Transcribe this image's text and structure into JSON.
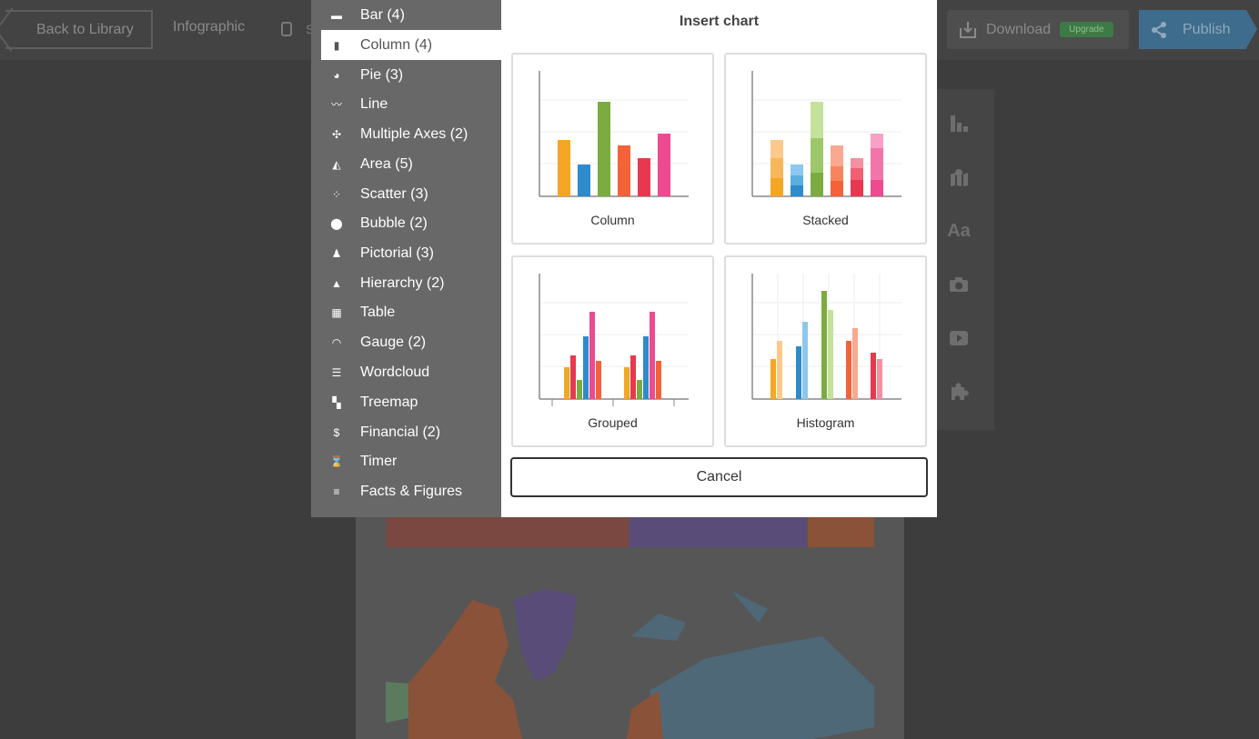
{
  "topbar": {
    "back_label": "Back to Library",
    "doc_title": "Infographic",
    "undo_label": "S",
    "download_label": "Download",
    "upgrade_label": "Upgrade",
    "publish_label": "Publish"
  },
  "menu": {
    "items": [
      {
        "label": "Bar (4)",
        "icon": "bar-chart-icon"
      },
      {
        "label": "Column (4)",
        "icon": "column-chart-icon"
      },
      {
        "label": "Pie (3)",
        "icon": "pie-chart-icon"
      },
      {
        "label": "Line",
        "icon": "line-chart-icon"
      },
      {
        "label": "Multiple Axes (2)",
        "icon": "multiple-axes-icon"
      },
      {
        "label": "Area (5)",
        "icon": "area-chart-icon"
      },
      {
        "label": "Scatter (3)",
        "icon": "scatter-chart-icon"
      },
      {
        "label": "Bubble (2)",
        "icon": "bubble-chart-icon"
      },
      {
        "label": "Pictorial (3)",
        "icon": "pictorial-icon"
      },
      {
        "label": "Hierarchy (2)",
        "icon": "hierarchy-icon"
      },
      {
        "label": "Table",
        "icon": "table-icon"
      },
      {
        "label": "Gauge (2)",
        "icon": "gauge-icon"
      },
      {
        "label": "Wordcloud",
        "icon": "wordcloud-icon"
      },
      {
        "label": "Treemap",
        "icon": "treemap-icon"
      },
      {
        "label": "Financial (2)",
        "icon": "dollar-icon"
      },
      {
        "label": "Timer",
        "icon": "timer-icon"
      },
      {
        "label": "Facts & Figures",
        "icon": "list-icon"
      }
    ],
    "selected": "Column (4)"
  },
  "dialog": {
    "title": "Insert chart",
    "cards": [
      {
        "label": "Column"
      },
      {
        "label": "Stacked"
      },
      {
        "label": "Grouped"
      },
      {
        "label": "Histogram"
      }
    ],
    "cancel_label": "Cancel"
  },
  "right_tools": [
    "chart-tool-icon",
    "map-tool-icon",
    "text-tool-icon",
    "camera-tool-icon",
    "video-tool-icon",
    "puzzle-tool-icon"
  ],
  "colors": {
    "accent_publish": "#3e6c8d",
    "upgrade_green": "#3d7a46",
    "orange": "#f5a623",
    "blue": "#2e8bcc",
    "green": "#7cac3f",
    "red_orange": "#f4623a",
    "red": "#e8384f",
    "pink": "#ee4a8f"
  }
}
